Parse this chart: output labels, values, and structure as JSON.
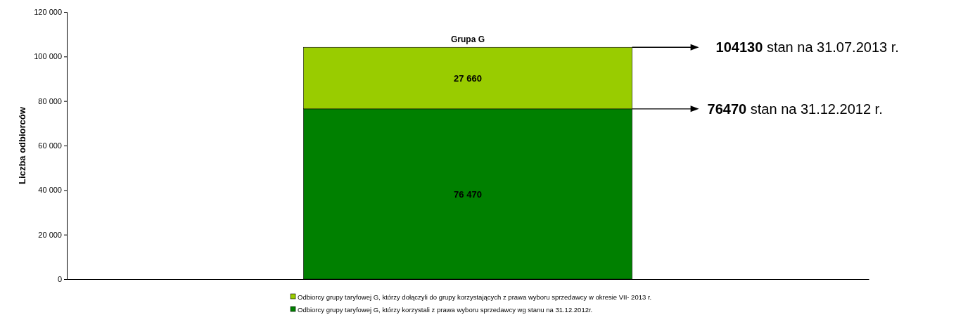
{
  "chart_data": {
    "type": "bar",
    "title": "Grupa G",
    "ylabel": "Liczba odbiorców",
    "categories": [
      null
    ],
    "stacked": true,
    "series": [
      {
        "name": "Odbiorcy grupy taryfowej G, którzy korzystali z prawa wyboru sprzedawcy wg stanu na 31.12.2012r.",
        "color": "#008000",
        "values": [
          76470
        ],
        "value_labels": [
          "76 470"
        ]
      },
      {
        "name": "Odbiorcy grupy taryfowej G, którzy dołączyli do grupy korzystających z  prawa wyboru sprzedawcy w okresie VII- 2013 r.",
        "color": "#99cc00",
        "values": [
          27660
        ],
        "value_labels": [
          "27 660"
        ]
      }
    ],
    "ylim": [
      0,
      120000
    ],
    "yticks": [
      {
        "value": 0,
        "label": "0"
      },
      {
        "value": 20000,
        "label": "20 000"
      },
      {
        "value": 40000,
        "label": "40 000"
      },
      {
        "value": 60000,
        "label": "60 000"
      },
      {
        "value": 80000,
        "label": "80 000"
      },
      {
        "value": 100000,
        "label": "100 000"
      },
      {
        "value": 120000,
        "label": "120 000"
      }
    ],
    "legend": "bottom",
    "annotations": [
      "104130 stan na 31.07.2013 r.",
      "76470 stan na 31.12.2012 r."
    ]
  }
}
